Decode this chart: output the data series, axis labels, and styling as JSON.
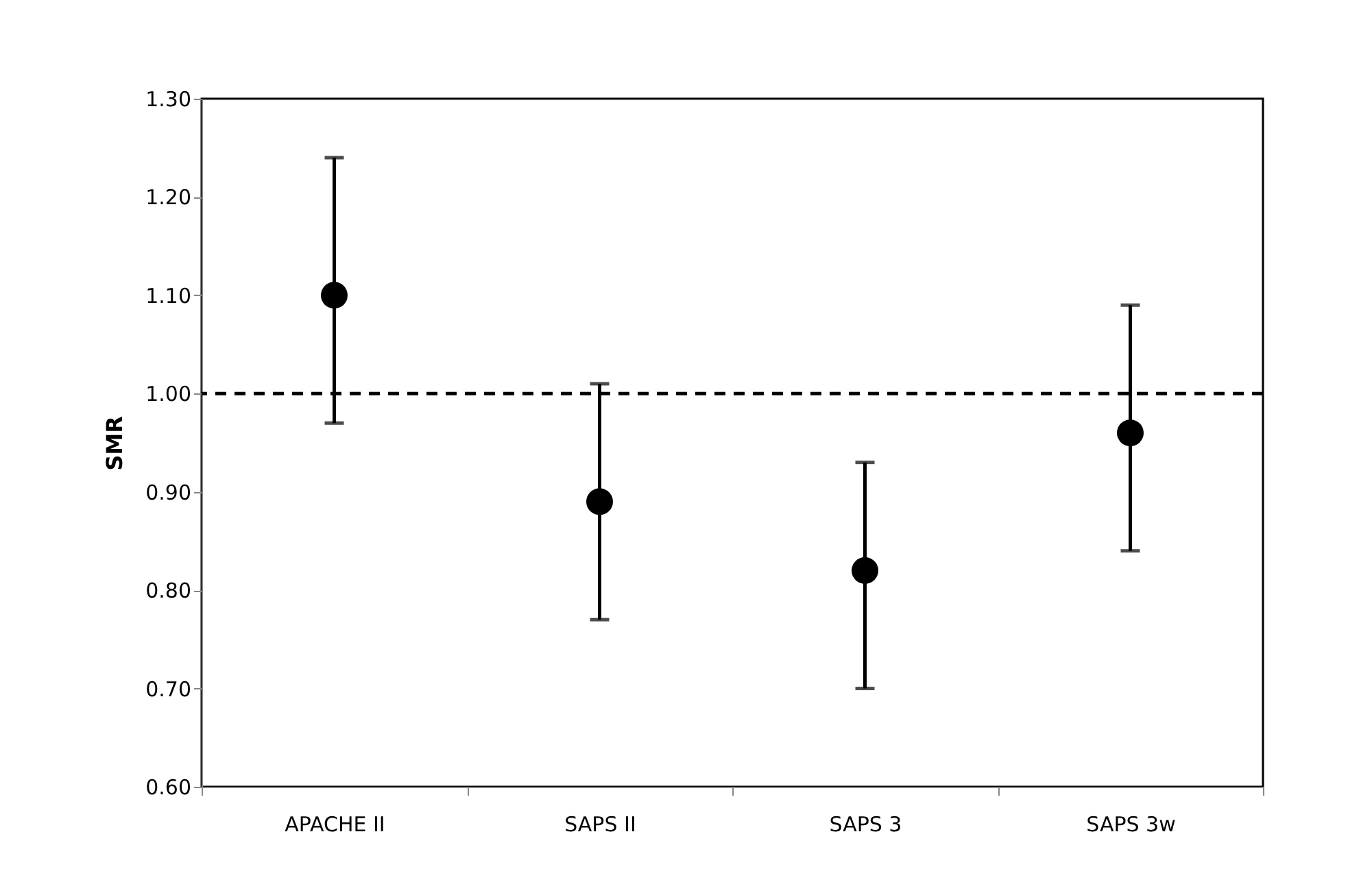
{
  "chart_data": {
    "type": "scatter",
    "ylabel": "SMR",
    "categories": [
      "APACHE II",
      "SAPS II",
      "SAPS 3",
      "SAPS 3w"
    ],
    "series": [
      {
        "color": "#000000",
        "values": [
          1.1,
          0.89,
          0.82,
          0.96
        ],
        "errors": [
          [
            0.97,
            1.24
          ],
          [
            0.77,
            1.01
          ],
          [
            0.7,
            0.93
          ],
          [
            0.84,
            1.09
          ]
        ]
      }
    ],
    "ylim": [
      0.6,
      1.3
    ],
    "yticks": [
      {
        "value": 0.6,
        "label": "0.60"
      },
      {
        "value": 0.7,
        "label": "0.70"
      },
      {
        "value": 0.8,
        "label": "0.80"
      },
      {
        "value": 0.9,
        "label": "0.90"
      },
      {
        "value": 1.0,
        "label": "1.00"
      },
      {
        "value": 1.1,
        "label": "1.10"
      },
      {
        "value": 1.2,
        "label": "1.20"
      },
      {
        "value": 1.3,
        "label": "1.30"
      }
    ],
    "ref_lines": [
      {
        "axis": "y",
        "value": 1.0,
        "color": "#000000",
        "line_style": "dashed"
      }
    ],
    "marker": "circle",
    "grid": false
  }
}
